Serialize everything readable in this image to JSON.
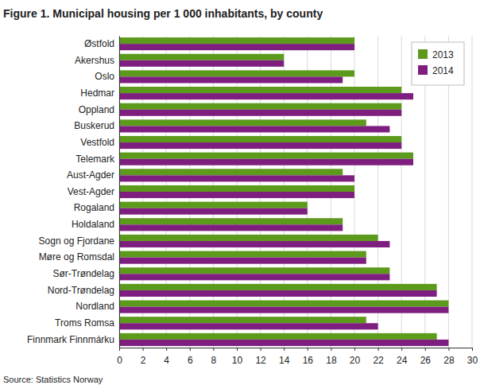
{
  "chart_data": {
    "type": "bar",
    "orientation": "horizontal",
    "title": "Figure 1. Municipal housing per 1 000 inhabitants, by county",
    "source": "Source: Statistics Norway",
    "categories": [
      "Østfold",
      "Akershus",
      "Oslo",
      "Hedmar",
      "Oppland",
      "Buskerud",
      "Vestfold",
      "Telemark",
      "Aust-Agder",
      "Vest-Agder",
      "Rogaland",
      "Holdaland",
      "Sogn og Fjordane",
      "Møre og Romsdal",
      "Sør-Trøndelag",
      "Nord-Trøndelag",
      "Nordland",
      "Troms Romsa",
      "Finnmark Finnmárku"
    ],
    "series": [
      {
        "name": "2013",
        "color": "#5c9a1b",
        "values": [
          20,
          14,
          20,
          24,
          24,
          21,
          24,
          25,
          19,
          20,
          16,
          19,
          22,
          21,
          23,
          27,
          28,
          21,
          27
        ]
      },
      {
        "name": "2014",
        "color": "#7e1f80",
        "values": [
          20,
          14,
          19,
          25,
          24,
          23,
          24,
          25,
          20,
          20,
          16,
          19,
          23,
          21,
          23,
          27,
          28,
          22,
          28
        ]
      }
    ],
    "xlim": [
      0,
      30
    ],
    "xticks": [
      0,
      2,
      4,
      6,
      8,
      10,
      12,
      14,
      16,
      18,
      20,
      22,
      24,
      26,
      28,
      30
    ],
    "grid": true,
    "legend": "top-right"
  }
}
